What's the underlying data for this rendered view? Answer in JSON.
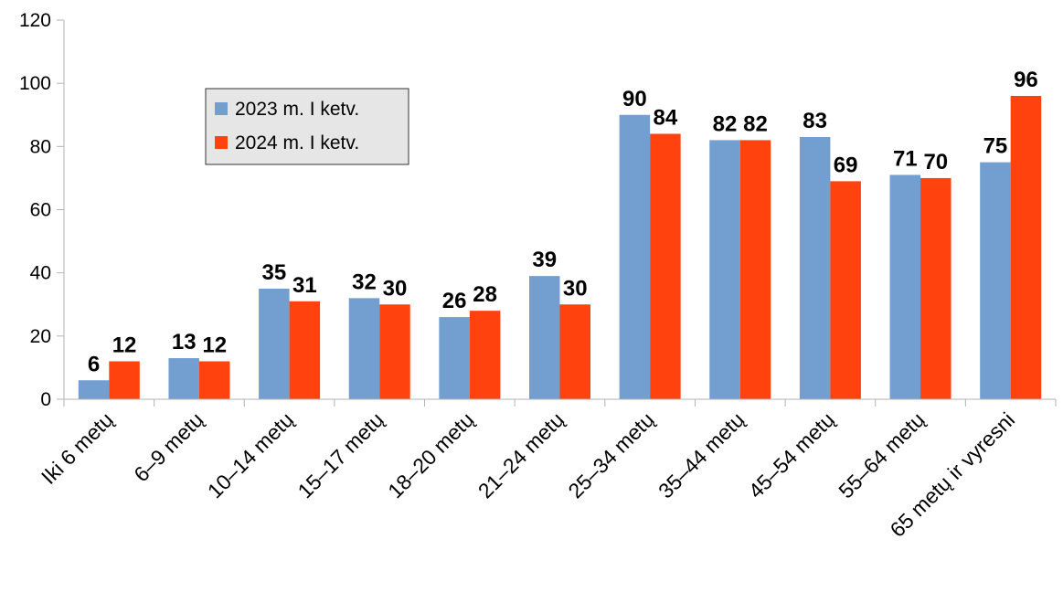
{
  "chart_data": {
    "type": "bar",
    "categories": [
      "Iki 6 metų",
      "6–9 metų",
      "10–14 metų",
      "15–17 metų",
      "18–20 metų",
      "21–24 metų",
      "25–34 metų",
      "35–44 metų",
      "45–54 metų",
      "55–64 metų",
      "65 metų ir vyresni"
    ],
    "series": [
      {
        "name": "2023 m. I ketv.",
        "color": "#729fcf",
        "values": [
          6,
          13,
          35,
          32,
          26,
          39,
          90,
          82,
          83,
          71,
          75
        ]
      },
      {
        "name": "2024 m. I ketv.",
        "color": "#ff420e",
        "values": [
          12,
          12,
          31,
          30,
          28,
          30,
          84,
          82,
          69,
          70,
          96
        ]
      }
    ],
    "ylim": [
      0,
      120
    ],
    "yticks": [
      0,
      20,
      40,
      60,
      80,
      100,
      120
    ],
    "grid": false
  }
}
